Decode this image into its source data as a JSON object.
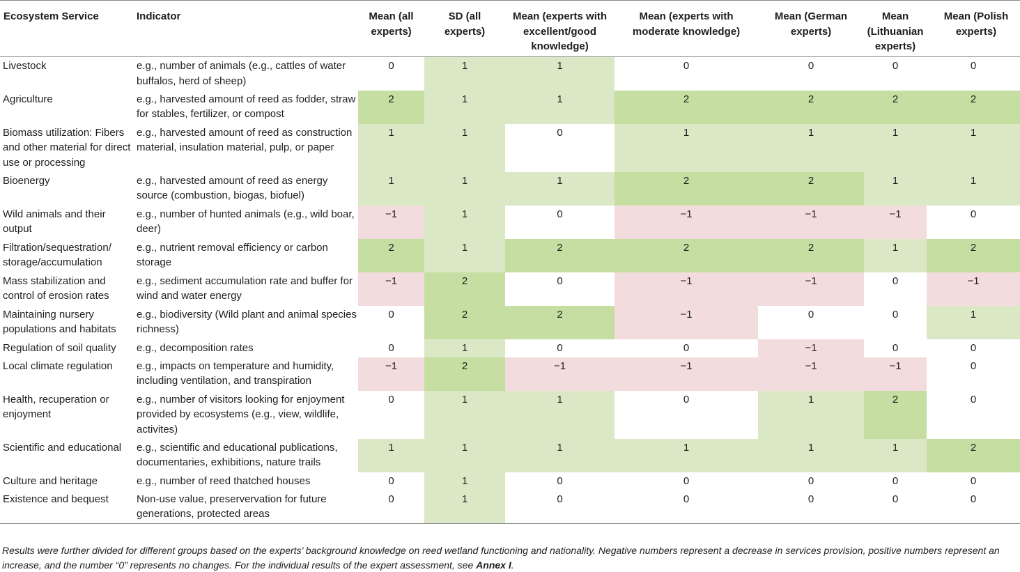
{
  "headers": {
    "service": "Ecosystem Service",
    "indicator": "Indicator",
    "mean_all": "Mean (all experts)",
    "sd_all": "SD (all experts)",
    "mean_good": "Mean (experts with excellent/good knowledge)",
    "mean_moderate": "Mean (experts with moderate knowledge)",
    "mean_german": "Mean (German experts)",
    "mean_lithuanian": "Mean (Lithuanian experts)",
    "mean_polish": "Mean (Polish experts)"
  },
  "rows": [
    {
      "service": "Livestock",
      "indicator": "e.g., number of animals (e.g., cattles of water buffalos, herd of sheep)",
      "values": [
        "0",
        "1",
        "1",
        "0",
        "0",
        "0",
        "0"
      ]
    },
    {
      "service": "Agriculture",
      "indicator": "e.g., harvested amount of reed as fodder, straw for stables, fertilizer, or compost",
      "values": [
        "2",
        "1",
        "1",
        "2",
        "2",
        "2",
        "2"
      ]
    },
    {
      "service": "Biomass utilization: Fibers and other material for direct use or processing",
      "indicator": "e.g., harvested amount of reed as construction material, insulation material, pulp, or paper",
      "values": [
        "1",
        "1",
        "0",
        "1",
        "1",
        "1",
        "1"
      ]
    },
    {
      "service": "Bioenergy",
      "indicator": "e.g., harvested amount of reed as energy source (combustion, biogas, biofuel)",
      "values": [
        "1",
        "1",
        "1",
        "2",
        "2",
        "1",
        "1"
      ]
    },
    {
      "service": "Wild animals and their output",
      "indicator": "e.g., number of hunted animals (e.g., wild boar, deer)",
      "values": [
        "−1",
        "1",
        "0",
        "−1",
        "−1",
        "−1",
        "0"
      ]
    },
    {
      "service": "Filtration/sequestration/ storage/accumulation",
      "indicator": "e.g., nutrient removal efficiency or carbon storage",
      "values": [
        "2",
        "1",
        "2",
        "2",
        "2",
        "1",
        "2"
      ]
    },
    {
      "service": "Mass stabilization and control of erosion rates",
      "indicator": "e.g., sediment accumulation rate and buffer for wind and water energy",
      "values": [
        "−1",
        "2",
        "0",
        "−1",
        "−1",
        "0",
        "−1"
      ]
    },
    {
      "service": "Maintaining nursery populations and habitats",
      "indicator": "e.g., biodiversity (Wild plant and animal species richness)",
      "values": [
        "0",
        "2",
        "2",
        "−1",
        "0",
        "0",
        "1"
      ]
    },
    {
      "service": "Regulation of soil quality",
      "indicator": "e.g., decomposition rates",
      "values": [
        "0",
        "1",
        "0",
        "0",
        "−1",
        "0",
        "0"
      ]
    },
    {
      "service": "Local climate regulation",
      "indicator": "e.g., impacts on temperature and humidity, including ventilation, and transpiration",
      "values": [
        "−1",
        "2",
        "−1",
        "−1",
        "−1",
        "−1",
        "0"
      ]
    },
    {
      "service": "Health, recuperation or enjoyment",
      "indicator": "e.g., number of visitors looking for enjoyment provided by ecosystems (e.g., view, wildlife, activites)",
      "values": [
        "0",
        "1",
        "1",
        "0",
        "1",
        "2",
        "0"
      ]
    },
    {
      "service": "Scientific and educational",
      "indicator": "e.g., scientific and educational publications, documentaries, exhibitions, nature trails",
      "values": [
        "1",
        "1",
        "1",
        "1",
        "1",
        "1",
        "2"
      ]
    },
    {
      "service": "Culture and heritage",
      "indicator": "e.g., number of reed thatched houses",
      "values": [
        "0",
        "1",
        "0",
        "0",
        "0",
        "0",
        "0"
      ]
    },
    {
      "service": "Existence and bequest",
      "indicator": "Non-use value, preservervation for future generations, protected areas",
      "values": [
        "0",
        "1",
        "0",
        "0",
        "0",
        "0",
        "0"
      ]
    }
  ],
  "footnote": {
    "text": "Results were further divided for different groups based on the experts’ background knowledge on reed wetland functioning and nationality. Negative numbers represent a decrease in services provision, positive numbers represent an increase, and the number “0” represents no changes. For the individual results of the expert assessment, see ",
    "link": "Annex I",
    "end": "."
  },
  "colors": {
    "strong_positive": "#c6dea1",
    "positive": "#dbe8c5",
    "negative": "#f3dcdd",
    "rule": "#8a8a8a"
  }
}
